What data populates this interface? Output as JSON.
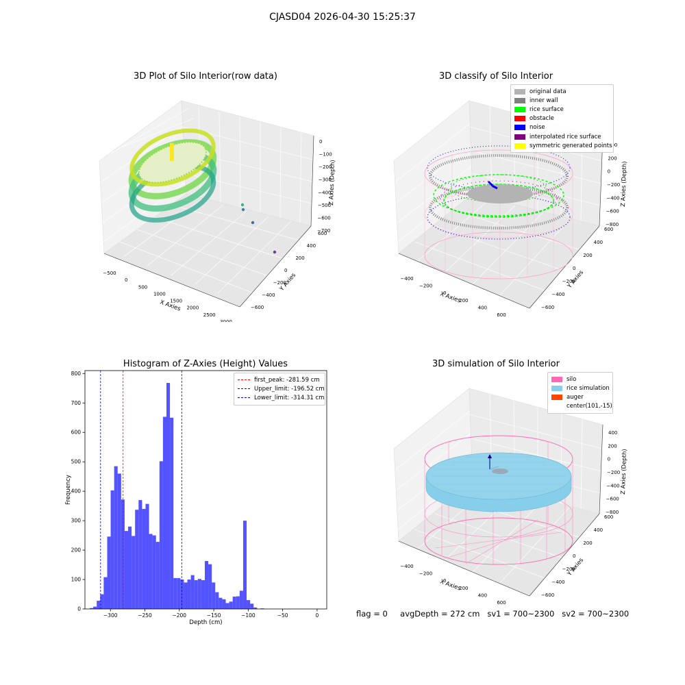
{
  "suptitle": "CJASD04 2026-04-30 15:25:37",
  "panels": {
    "raw": {
      "title": "3D Plot of Silo Interior(row data)",
      "xlabel": "X Axies",
      "ylabel": "Y Axies",
      "zlabel": "Z Axies (Depth)",
      "x_ticks": [
        "−500",
        "0",
        "500",
        "1000",
        "1500",
        "2000",
        "2500",
        "3000"
      ],
      "y_ticks": [
        "−600",
        "−400",
        "−200",
        "0",
        "200",
        "400",
        "600"
      ],
      "z_ticks": [
        "0",
        "−100",
        "−200",
        "−300",
        "−400",
        "−500",
        "−600",
        "−700"
      ]
    },
    "classify": {
      "title": "3D classify of Silo Interior",
      "xlabel": "X Axies",
      "ylabel": "Y Axies",
      "zlabel": "Z Axies (Depth)",
      "x_ticks": [
        "−400",
        "−200",
        "0",
        "200",
        "400",
        "600"
      ],
      "y_ticks": [
        "−600",
        "−400",
        "−200",
        "0",
        "200",
        "400",
        "600"
      ],
      "z_ticks": [
        "400",
        "200",
        "0",
        "−200",
        "−400",
        "−600",
        "−800"
      ],
      "legend": [
        {
          "label": "original data",
          "color": "#b3b3b3"
        },
        {
          "label": "inner wall",
          "color": "#808080"
        },
        {
          "label": "rice surface",
          "color": "#00ff00"
        },
        {
          "label": "obstacle",
          "color": "#ff0000"
        },
        {
          "label": "noise",
          "color": "#0000ff"
        },
        {
          "label": "interpolated rice surface",
          "color": "#800080"
        },
        {
          "label": "symmetric generated points",
          "color": "#ffff00"
        }
      ]
    },
    "simulation": {
      "title": "3D simulation of Silo Interior",
      "xlabel": "X Axies",
      "ylabel": "Y Axies",
      "zlabel": "Z Axies (Depth)",
      "x_ticks": [
        "−400",
        "−200",
        "0",
        "200",
        "400",
        "600"
      ],
      "y_ticks": [
        "−600",
        "−400",
        "−200",
        "0",
        "200",
        "400",
        "600"
      ],
      "z_ticks": [
        "400",
        "200",
        "0",
        "−200",
        "−400",
        "−600",
        "−800"
      ],
      "legend": [
        {
          "label": "silo",
          "color": "#ff69b4"
        },
        {
          "label": "rice simulation",
          "color": "#87ceeb"
        },
        {
          "label": "auger",
          "color": "#ff4500"
        },
        {
          "label": "center(101,-15)",
          "color": ""
        }
      ]
    }
  },
  "footer": {
    "flag": "flag = 0",
    "avg": "avgDepth = 272 cm",
    "sv1": "sv1 = 700~2300",
    "sv2": "sv2 = 700~2300"
  },
  "chart_data": {
    "type": "bar",
    "title": "Histogram of Z-Axies (Height) Values",
    "xlabel": "Depth (cm)",
    "ylabel": "Frequency",
    "xlim": [
      -337,
      14
    ],
    "ylim": [
      0,
      810
    ],
    "x_ticks": [
      -300,
      -250,
      -200,
      -150,
      -100,
      -50,
      0
    ],
    "y_ticks": [
      0,
      100,
      200,
      300,
      400,
      500,
      600,
      700,
      800
    ],
    "bin_start": -330,
    "bin_width": 5.06,
    "values": [
      3,
      8,
      28,
      50,
      108,
      246,
      403,
      485,
      460,
      372,
      265,
      280,
      248,
      337,
      370,
      340,
      357,
      255,
      250,
      228,
      502,
      653,
      768,
      650,
      105,
      105,
      100,
      90,
      100,
      115,
      98,
      102,
      98,
      163,
      152,
      90,
      57,
      38,
      33,
      20,
      25,
      42,
      43,
      62,
      300,
      30,
      18,
      5,
      0,
      2
    ],
    "bar_color": "#4a4aff",
    "vlines": [
      {
        "label": "first_peak: -281.59 cm",
        "x": -281.59,
        "color": "#ff0000"
      },
      {
        "label": "Upper_limit: -196.52 cm",
        "x": -196.52,
        "color": "#0000cc"
      },
      {
        "label": "Lower_limit: -314.31 cm",
        "x": -314.31,
        "color": "#0000cc"
      }
    ],
    "legend_position": "top-right"
  }
}
